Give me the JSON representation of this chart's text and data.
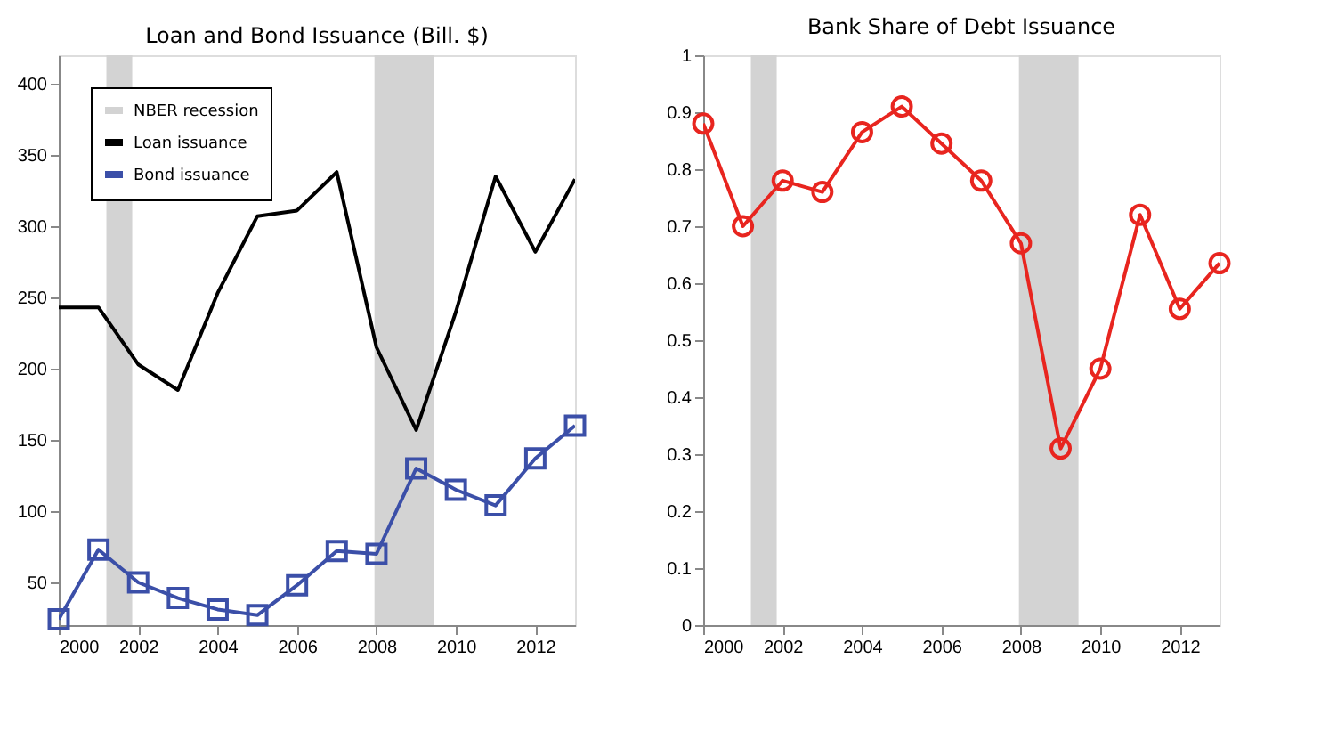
{
  "chart_data": [
    {
      "type": "line",
      "title": "Loan and Bond Issuance (Bill. $)",
      "x": [
        2000,
        2001,
        2002,
        2003,
        2004,
        2005,
        2006,
        2007,
        2008,
        2009,
        2010,
        2011,
        2012,
        2013
      ],
      "series": [
        {
          "name": "Loan issuance",
          "color": "#000000",
          "marker": "none",
          "values": [
            243,
            243,
            203,
            185,
            253,
            307,
            311,
            338,
            215,
            157,
            240,
            335,
            282,
            333
          ]
        },
        {
          "name": "Bond issuance",
          "color": "#3b4fa8",
          "marker": "square",
          "values": [
            24,
            73,
            50,
            39,
            31,
            27,
            48,
            72,
            70,
            130,
            115,
            104,
            137,
            160
          ]
        }
      ],
      "bands": [
        {
          "axis": "x",
          "from": 2001.2,
          "to": 2001.85,
          "label": "NBER recession",
          "color": "#d3d3d3"
        },
        {
          "axis": "x",
          "from": 2007.95,
          "to": 2009.45,
          "color": "#d3d3d3"
        }
      ],
      "xlim": [
        2000,
        2013
      ],
      "xticks": [
        2000,
        2002,
        2004,
        2006,
        2008,
        2010,
        2012
      ],
      "ylim": [
        20,
        420
      ],
      "yticks": [
        50,
        100,
        150,
        200,
        250,
        300,
        350,
        400
      ],
      "grid": false,
      "legend": "top left"
    },
    {
      "type": "line",
      "title": "Bank Share of Debt Issuance",
      "x": [
        2000,
        2001,
        2002,
        2003,
        2004,
        2005,
        2006,
        2007,
        2008,
        2009,
        2010,
        2011,
        2012,
        2013
      ],
      "series": [
        {
          "color": "#e8251f",
          "marker": "circle",
          "values": [
            0.88,
            0.7,
            0.78,
            0.76,
            0.865,
            0.91,
            0.845,
            0.78,
            0.67,
            0.31,
            0.45,
            0.72,
            0.555,
            0.635
          ]
        }
      ],
      "bands": [
        {
          "axis": "x",
          "from": 2001.2,
          "to": 2001.85,
          "color": "#d3d3d3"
        },
        {
          "axis": "x",
          "from": 2007.95,
          "to": 2009.45,
          "color": "#d3d3d3"
        }
      ],
      "xlim": [
        2000,
        2013
      ],
      "xticks": [
        2000,
        2002,
        2004,
        2006,
        2008,
        2010,
        2012
      ],
      "ylim": [
        0,
        1
      ],
      "yticks": [
        0,
        0.1,
        0.2,
        0.3,
        0.4,
        0.5,
        0.6,
        0.7,
        0.8,
        0.9,
        1
      ],
      "grid": false,
      "legend": false
    }
  ]
}
